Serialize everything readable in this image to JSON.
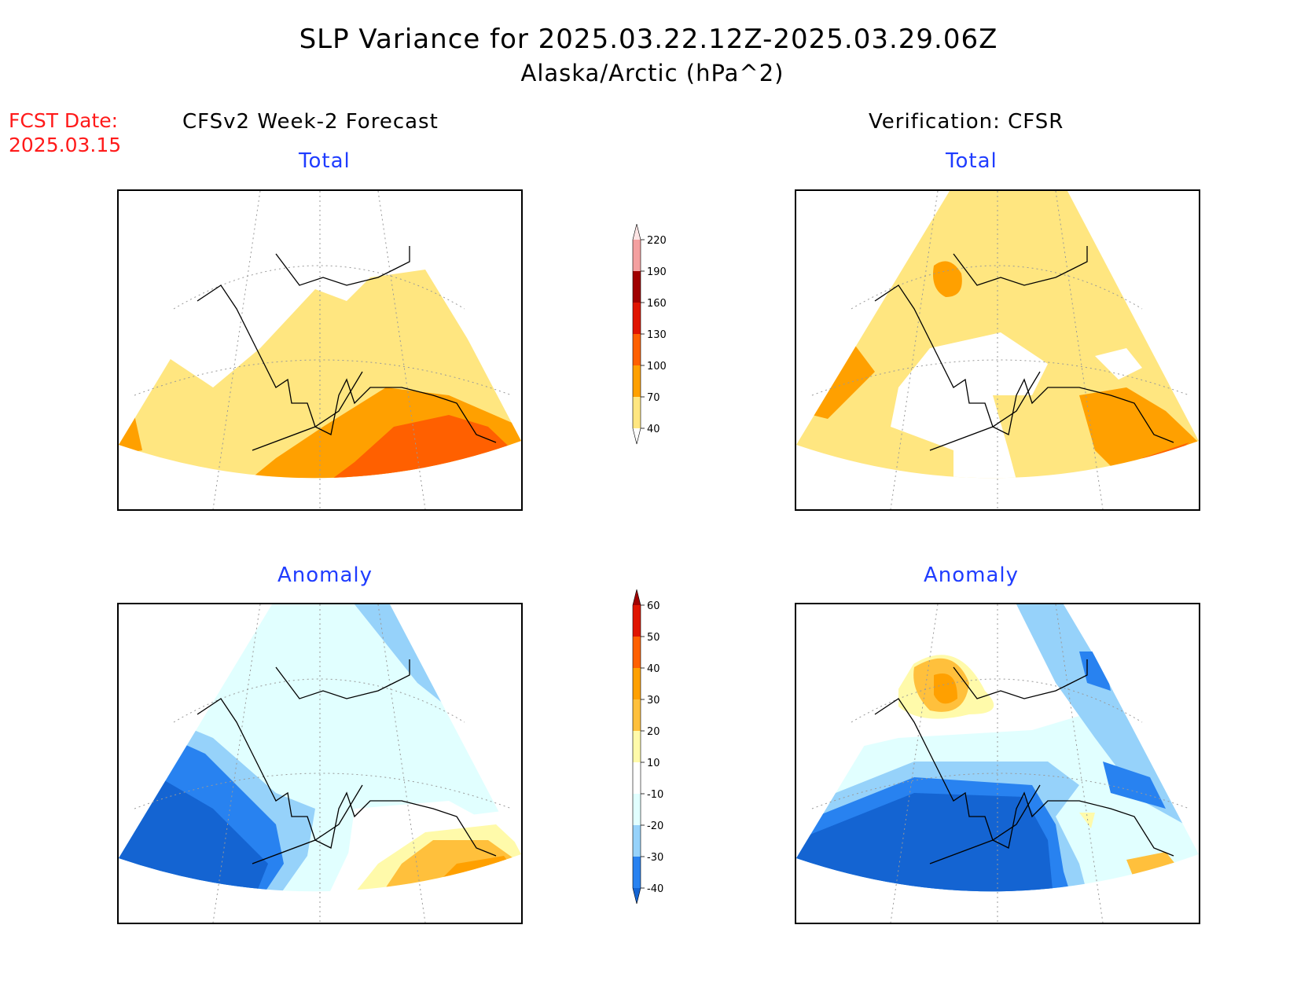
{
  "title": {
    "main": "SLP Variance for 2025.03.22.12Z-2025.03.29.06Z",
    "sub": "Alaska/Arctic (hPa^2)"
  },
  "fcst_date": {
    "label": "FCST Date:",
    "value": "2025.03.15"
  },
  "columns": {
    "left": "CFSv2 Week-2 Forecast",
    "right": "Verification: CFSR"
  },
  "panels": {
    "top_left": {
      "label": "Total"
    },
    "top_right": {
      "label": "Total"
    },
    "bottom_left": {
      "label": "Anomaly"
    },
    "bottom_right": {
      "label": "Anomaly"
    }
  },
  "colorbars": {
    "total": {
      "ticks": [
        "40",
        "70",
        "100",
        "130",
        "160",
        "190",
        "220"
      ],
      "colors": [
        "#ffffff",
        "#ffe680",
        "#ffa000",
        "#ff6000",
        "#e01400",
        "#a00000",
        "#f4a0a0",
        "#fde4e4"
      ]
    },
    "anomaly": {
      "ticks": [
        "-40",
        "-30",
        "-20",
        "-10",
        "10",
        "20",
        "30",
        "40",
        "50",
        "60"
      ],
      "colors": [
        "#1464d2",
        "#2882f0",
        "#96d2fa",
        "#e1ffff",
        "#ffffff",
        "#fffaaa",
        "#ffc03c",
        "#ffa000",
        "#ff6000",
        "#e01400",
        "#a00000"
      ]
    }
  },
  "map_colors": {
    "yellow": "#ffe680",
    "orange": "#ffa000",
    "dark_orange": "#ff6000",
    "light_cyan": "#e1ffff",
    "light_blue": "#96d2fa",
    "mid_blue": "#2882f0",
    "deep_blue": "#1464d2",
    "pale_yellow": "#fffaaa",
    "light_orange": "#ffc03c"
  }
}
